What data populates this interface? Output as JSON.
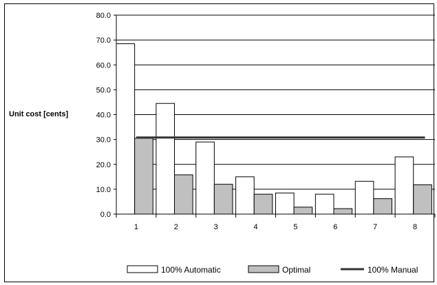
{
  "chart_data": {
    "type": "bar",
    "title": "",
    "xlabel": "",
    "ylabel": "Unit cost [cents]",
    "categories": [
      "1",
      "2",
      "3",
      "4",
      "5",
      "6",
      "7",
      "8"
    ],
    "series": [
      {
        "name": "100% Automatic",
        "kind": "bar",
        "values": [
          68.5,
          44.5,
          29.0,
          15.0,
          8.5,
          8.0,
          13.2,
          23.0
        ],
        "fill": "#ffffff",
        "stroke": "#000000"
      },
      {
        "name": "Optimal",
        "kind": "bar",
        "values": [
          30.5,
          15.8,
          12.0,
          8.0,
          2.8,
          2.2,
          6.2,
          11.8
        ],
        "fill": "#c0c0c0",
        "stroke": "#000000"
      },
      {
        "name": "100% Manual",
        "kind": "line",
        "values": [
          30.8,
          30.8,
          30.8,
          30.8,
          30.8,
          30.8,
          30.8,
          30.8
        ],
        "color": "#333333"
      }
    ],
    "ylim": [
      0,
      80
    ],
    "yticks": [
      "0.0",
      "10.0",
      "20.0",
      "30.0",
      "40.0",
      "50.0",
      "60.0",
      "70.0",
      "80.0"
    ],
    "grid": true,
    "legend_position": "bottom"
  }
}
